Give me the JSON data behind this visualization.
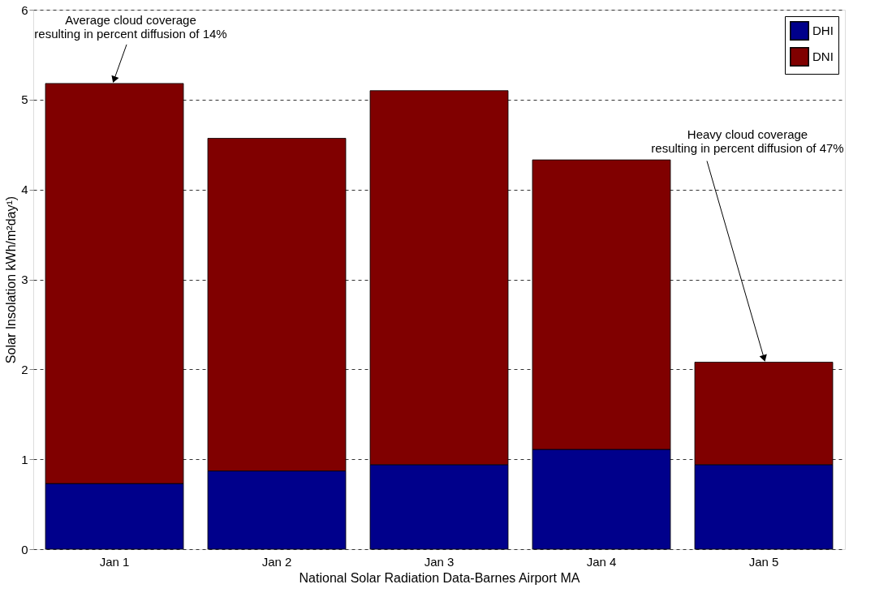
{
  "chart_data": {
    "type": "bar",
    "stacked": true,
    "categories": [
      "Jan 1",
      "Jan 2",
      "Jan 3",
      "Jan 4",
      "Jan 5"
    ],
    "series": [
      {
        "name": "DHI",
        "color": "#00008b",
        "values": [
          0.73,
          0.87,
          0.94,
          1.11,
          0.94
        ]
      },
      {
        "name": "DNI",
        "color": "#800000",
        "values": [
          4.45,
          3.7,
          4.16,
          3.22,
          1.14
        ]
      }
    ],
    "xlabel": "National Solar Radiation Data-Barnes Airport MA",
    "ylabel": "Solar Insolation kWh/m²day¹)",
    "ylim": [
      0,
      6
    ],
    "yticks": [
      0,
      1,
      2,
      3,
      4,
      5,
      6
    ],
    "grid": "y",
    "legend": "top right",
    "annotations": [
      {
        "text": "Average cloud coverage\nresulting in percent diffusion of 14%",
        "x": "Jan 1",
        "y": 5.18
      },
      {
        "text": "Heavy cloud coverage\nresulting in percent diffusion of 47%",
        "x": "Jan 5",
        "y": 2.08
      }
    ]
  }
}
